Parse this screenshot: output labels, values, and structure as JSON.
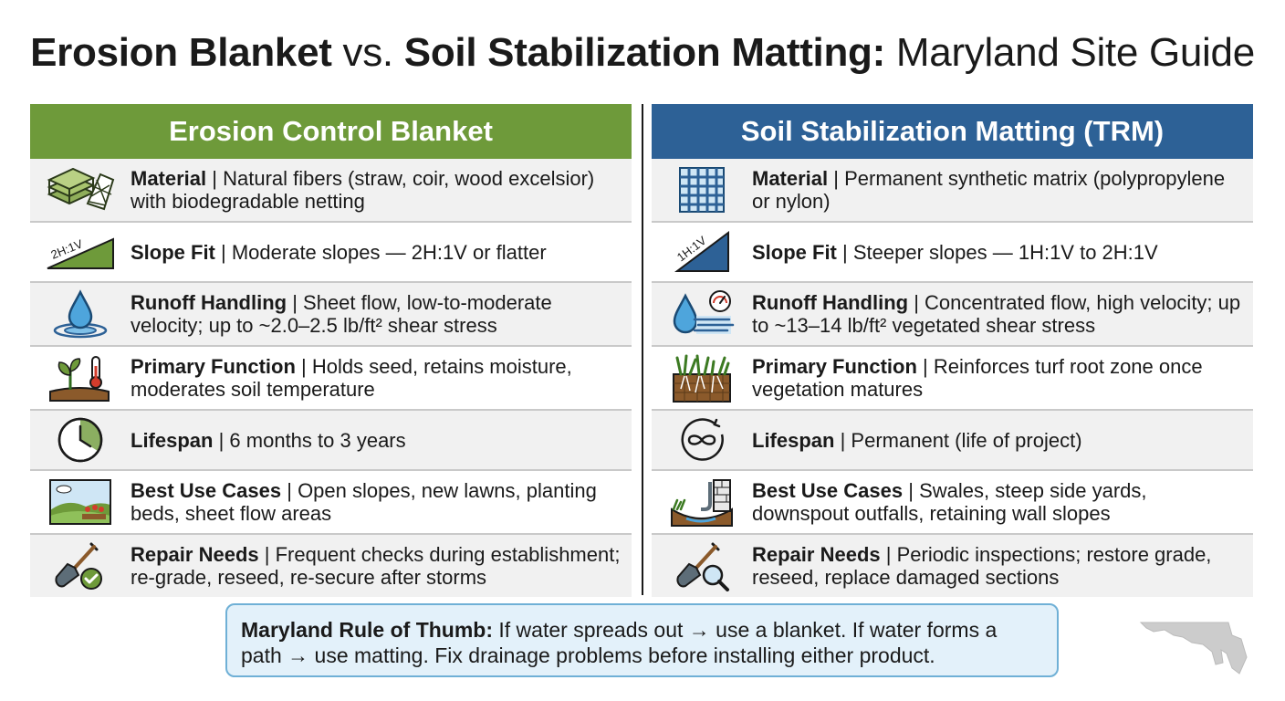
{
  "title": {
    "part1": "Erosion Blanket",
    "part2": " vs. ",
    "part3": "Soil Stabilization Matting:",
    "part4": " Maryland Site Guide"
  },
  "separator": " | ",
  "left": {
    "header": "Erosion Control Blanket",
    "rows": [
      {
        "icon": "blanket-layers-icon",
        "label": "Material",
        "text": "Natural fibers (straw, coir, wood excelsior) with biodegradable netting"
      },
      {
        "icon": "moderate-slope-icon",
        "slope_label": "2H:1V",
        "label": "Slope Fit",
        "text": "Moderate slopes — 2H:1V or flatter"
      },
      {
        "icon": "water-drop-icon",
        "label": "Runoff Handling",
        "text": "Sheet flow, low-to-moderate velocity; up to ~2.0–2.5 lb/ft² shear stress"
      },
      {
        "icon": "sprout-thermometer-icon",
        "label": "Primary Function",
        "text": "Holds seed, retains moisture, moderates soil temperature"
      },
      {
        "icon": "clock-icon",
        "label": "Lifespan",
        "text": "6 months to 3 years"
      },
      {
        "icon": "landscape-icon",
        "label": "Best Use Cases",
        "text": "Open slopes, new lawns, planting beds, sheet flow areas"
      },
      {
        "icon": "shovel-check-icon",
        "label": "Repair Needs",
        "text": "Frequent checks during establishment; re-grade, reseed, re-secure after storms"
      }
    ]
  },
  "right": {
    "header": "Soil Stabilization Matting (TRM)",
    "rows": [
      {
        "icon": "mesh-grid-icon",
        "label": "Material",
        "text": "Permanent synthetic matrix (polypropylene or nylon)"
      },
      {
        "icon": "steep-slope-icon",
        "slope_label": "1H:1V",
        "label": "Slope Fit",
        "text": "Steeper slopes — 1H:1V to 2H:1V"
      },
      {
        "icon": "water-velocity-gauge-icon",
        "label": "Runoff Handling",
        "text": "Concentrated flow, high velocity; up to ~13–14 lb/ft² vegetated shear stress"
      },
      {
        "icon": "turf-roots-icon",
        "label": "Primary Function",
        "text": "Reinforces turf root zone once vegetation matures"
      },
      {
        "icon": "infinity-icon",
        "label": "Lifespan",
        "text": "Permanent (life of project)"
      },
      {
        "icon": "downspout-swale-icon",
        "label": "Best Use Cases",
        "text": "Swales, steep side yards, downspout outfalls, retaining wall slopes"
      },
      {
        "icon": "shovel-magnifier-icon",
        "label": "Repair Needs",
        "text": "Periodic inspections; restore grade, reseed, replace damaged sections"
      }
    ]
  },
  "note": {
    "label": "Maryland Rule of Thumb:",
    "text": " If water spreads out → use a blanket. If water forms a path → use matting. Fix drainage problems before installing either product."
  },
  "colors": {
    "left_header": "#6e9a3a",
    "right_header": "#2d6196",
    "note_bg": "#e3f1fa",
    "note_border": "#6fb0d6"
  }
}
